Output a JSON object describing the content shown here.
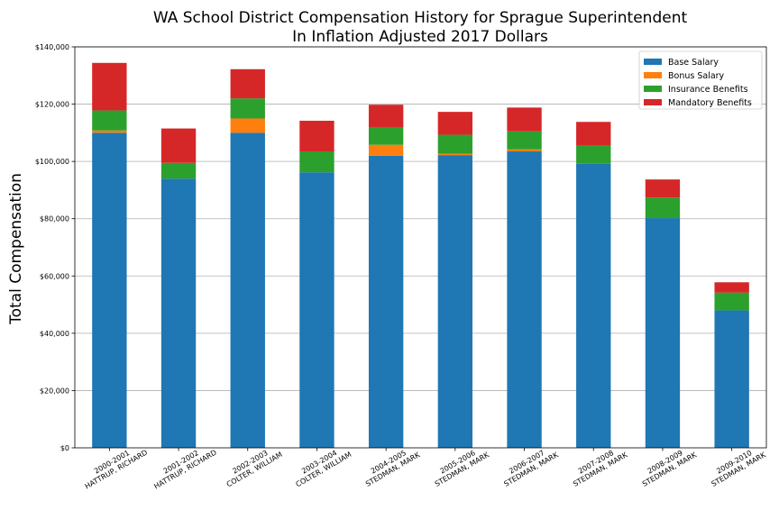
{
  "chart_data": {
    "type": "bar",
    "stacked": true,
    "title": [
      "WA School District Compensation History for Sprague Superintendent",
      "In Inflation Adjusted 2017 Dollars"
    ],
    "xlabel": "",
    "ylabel": "Total Compensation",
    "ylim": [
      0,
      140000
    ],
    "yticks": [
      0,
      20000,
      40000,
      60000,
      80000,
      100000,
      120000,
      140000
    ],
    "ytick_labels": [
      "$0",
      "$20,000",
      "$40,000",
      "$60,000",
      "$80,000",
      "$100,000",
      "$120,000",
      "$140,000"
    ],
    "grid": "horizontal",
    "legend_position": "top-right",
    "categories": [
      [
        "2000-2001",
        "HATTRUP, RICHARD"
      ],
      [
        "2001-2002",
        "HATTRUP, RICHARD"
      ],
      [
        "2002-2003",
        "COLTER, WILLIAM"
      ],
      [
        "2003-2004",
        "COLTER, WILLIAM"
      ],
      [
        "2004-2005",
        "STEDMAN, MARK"
      ],
      [
        "2005-2006",
        "STEDMAN, MARK"
      ],
      [
        "2006-2007",
        "STEDMAN, MARK"
      ],
      [
        "2007-2008",
        "STEDMAN, MARK"
      ],
      [
        "2008-2009",
        "STEDMAN, MARK"
      ],
      [
        "2009-2010",
        "STEDMAN, MARK"
      ]
    ],
    "series": [
      {
        "name": "Base Salary",
        "color": "#1f77b4",
        "values": [
          110000,
          94000,
          110000,
          96200,
          102000,
          102200,
          103500,
          99200,
          80200,
          48000
        ]
      },
      {
        "name": "Bonus Salary",
        "color": "#ff7f0e",
        "values": [
          800,
          0,
          5000,
          0,
          3800,
          500,
          700,
          0,
          0,
          0
        ]
      },
      {
        "name": "Insurance Benefits",
        "color": "#2ca02c",
        "values": [
          7000,
          5500,
          7000,
          7300,
          6000,
          6600,
          6300,
          6300,
          7200,
          6200
        ]
      },
      {
        "name": "Mandatory Benefits",
        "color": "#d62728",
        "values": [
          16600,
          12000,
          10200,
          10700,
          8000,
          8000,
          8300,
          8300,
          6300,
          3600
        ]
      }
    ]
  }
}
